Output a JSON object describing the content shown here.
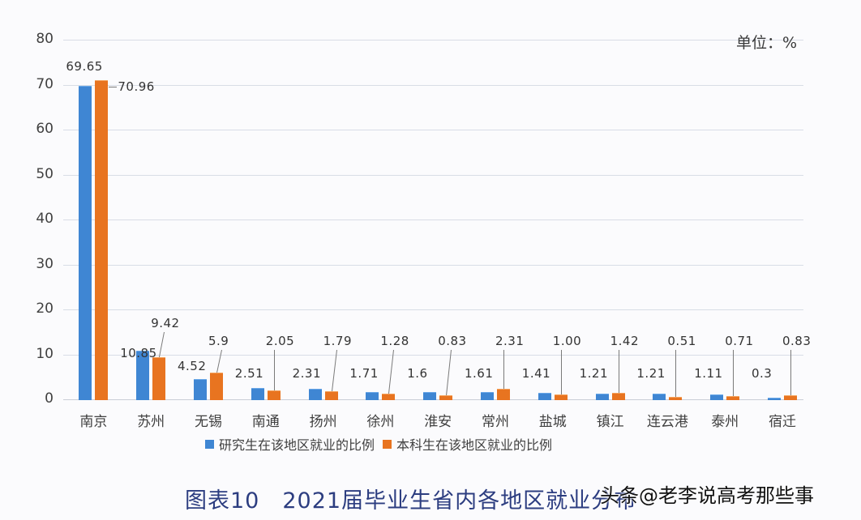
{
  "chart_data": {
    "type": "bar",
    "title": "图表10　2021届毕业生省内各地区就业分布",
    "unit_label": "单位：%",
    "xlabel": "",
    "ylabel": "",
    "ylim": [
      0,
      80
    ],
    "yticks": [
      0,
      10,
      20,
      30,
      40,
      50,
      60,
      70,
      80
    ],
    "grid": true,
    "legend_position": "bottom",
    "categories": [
      "南京",
      "苏州",
      "无锡",
      "南通",
      "扬州",
      "徐州",
      "淮安",
      "常州",
      "盐城",
      "镇江",
      "连云港",
      "泰州",
      "宿迁"
    ],
    "series": [
      {
        "name": "研究生在该地区就业的比例",
        "color": "#3f86d3",
        "values": [
          69.65,
          10.85,
          4.52,
          2.51,
          2.31,
          1.71,
          1.6,
          1.61,
          1.41,
          1.21,
          1.21,
          1.11,
          0.3
        ]
      },
      {
        "name": "本科生在该地区就业的比例",
        "color": "#e87420",
        "values": [
          70.96,
          9.42,
          5.9,
          2.05,
          1.79,
          1.28,
          0.83,
          2.31,
          1.0,
          1.42,
          0.51,
          0.71,
          0.83
        ]
      }
    ],
    "data_labels": {
      "blue": [
        "69.65",
        "10.85",
        "4.52",
        "2.51",
        "2.31",
        "1.71",
        "1.6",
        "1.61",
        "1.41",
        "1.21",
        "1.21",
        "1.11",
        "0.3"
      ],
      "orange": [
        "70.96",
        "9.42",
        "5.9",
        "2.05",
        "1.79",
        "1.28",
        "0.83",
        "2.31",
        "1.00",
        "1.42",
        "0.51",
        "0.71",
        "0.83"
      ]
    }
  },
  "unit": "单位：%",
  "caption": "图表10　2021届毕业生省内各地区就业分布",
  "legend": {
    "graduate": "研究生在该地区就业的比例",
    "undergraduate": "本科生在该地区就业的比例"
  },
  "watermark": "头条@老李说高考那些事"
}
